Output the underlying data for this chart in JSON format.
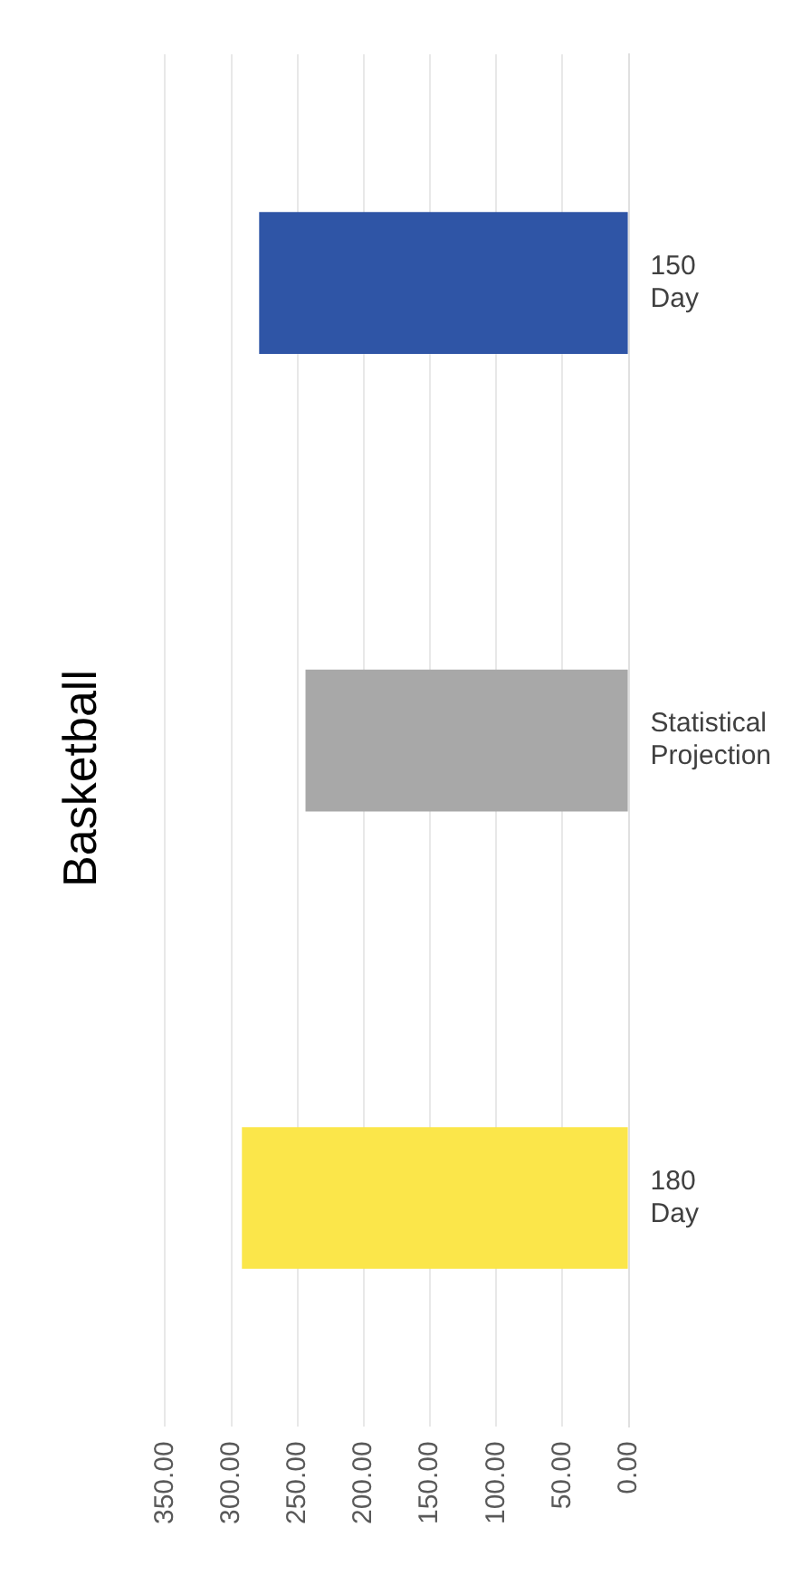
{
  "chart_data": {
    "type": "bar",
    "title": "Basketball",
    "orientation": "horizontal",
    "categories": [
      "150 Day",
      "Statistical Projection",
      "180 Day"
    ],
    "values": [
      279,
      244,
      292
    ],
    "colors": [
      "#2f55a6",
      "#a8a8a8",
      "#fbe64a"
    ],
    "xlim": [
      350,
      0
    ],
    "xticks": [
      {
        "value": 0,
        "label": "0.00"
      },
      {
        "value": 50,
        "label": "50.00"
      },
      {
        "value": 100,
        "label": "100.00"
      },
      {
        "value": 150,
        "label": "150.00"
      },
      {
        "value": 200,
        "label": "200.00"
      },
      {
        "value": 250,
        "label": "250.00"
      },
      {
        "value": 300,
        "label": "300.00"
      },
      {
        "value": 350,
        "label": "350.00"
      }
    ],
    "grid": "x",
    "legend": false
  }
}
